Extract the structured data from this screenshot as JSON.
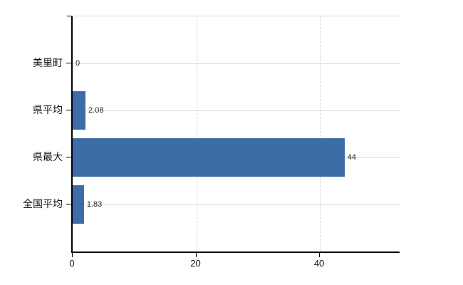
{
  "chart_data": {
    "type": "bar",
    "orientation": "horizontal",
    "categories": [
      "美里町",
      "県平均",
      "県最大",
      "全国平均"
    ],
    "series": [
      {
        "name": "value",
        "values": [
          0,
          2.08,
          44,
          1.83
        ]
      }
    ],
    "value_labels": [
      "0",
      "2.08",
      "44",
      "1.83"
    ],
    "x_ticks": [
      0,
      20,
      40
    ],
    "x_tick_labels": [
      "0",
      "20",
      "40"
    ],
    "xlim": [
      0,
      52.9
    ],
    "grid": true,
    "legend": false,
    "colors": {
      "bar": "#3d6da7",
      "grid_solid": "#d9ddd9",
      "grid_dashed": "#d4d4d4",
      "axis": "#000000",
      "text": "#111111",
      "value_text": "#222222",
      "background": "#ffffff"
    }
  }
}
